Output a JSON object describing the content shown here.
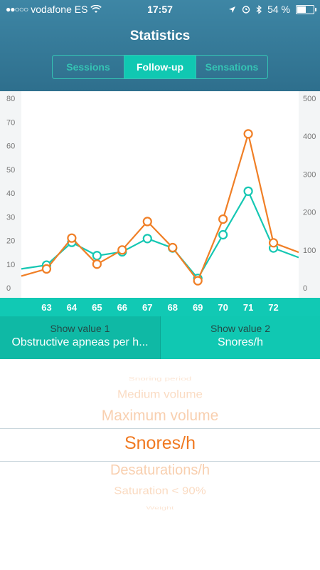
{
  "status_bar": {
    "carrier": "vodafone ES",
    "time": "17:57",
    "battery": "54 %",
    "battery_level": 0.54,
    "icons": [
      "signal-dots-icon",
      "wifi-icon",
      "location-arrow-icon",
      "alarm-icon",
      "bluetooth-icon",
      "battery-icon"
    ]
  },
  "header": {
    "title": "Statistics"
  },
  "tabs": [
    {
      "label": "Sessions",
      "active": false
    },
    {
      "label": "Follow-up",
      "active": true
    },
    {
      "label": "Sensations",
      "active": false
    }
  ],
  "colors": {
    "orange": "#f07f26",
    "teal": "#15c7b3",
    "header": "#3a7f9e"
  },
  "chart_data": {
    "type": "line",
    "x": [
      62,
      63,
      64,
      65,
      66,
      67,
      68,
      69,
      70,
      71,
      72,
      73
    ],
    "x_tick_labels": [
      "63",
      "64",
      "65",
      "66",
      "67",
      "68",
      "69",
      "70",
      "71",
      "72"
    ],
    "y_left_ticks": [
      "80",
      "70",
      "60",
      "50",
      "40",
      "30",
      "20",
      "10",
      "0"
    ],
    "y_right_ticks": [
      "500",
      "400",
      "300",
      "200",
      "100",
      "0"
    ],
    "y_left_range": [
      0,
      80
    ],
    "y_right_range": [
      0,
      500
    ],
    "series": [
      {
        "axis": "left",
        "color": "#f07f26",
        "values": [
          5,
          8,
          21,
          10,
          16,
          28,
          17,
          3,
          29,
          65,
          19,
          15
        ]
      },
      {
        "axis": "right",
        "color": "#15c7b3",
        "values": [
          50,
          60,
          120,
          85,
          95,
          130,
          105,
          25,
          140,
          255,
          105,
          80
        ]
      }
    ],
    "grid": false
  },
  "selectors": {
    "value1": {
      "label": "Show value 1",
      "value": "Obstructive apneas per h..."
    },
    "value2": {
      "label": "Show value 2",
      "value": "Snores/h"
    }
  },
  "picker": {
    "options": [
      "Snoring period",
      "Medium volume",
      "Maximum volume",
      "Snores/h",
      "Desaturations/h",
      "Saturation < 90%",
      "Weight"
    ],
    "selected_index": 3
  }
}
